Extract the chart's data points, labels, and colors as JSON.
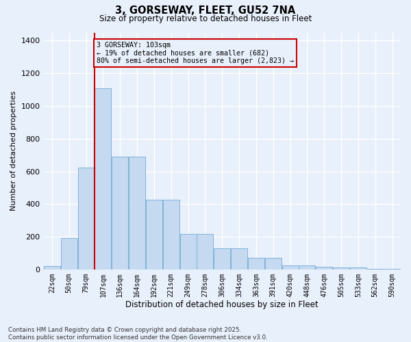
{
  "title_line1": "3, GORSEWAY, FLEET, GU52 7NA",
  "title_line2": "Size of property relative to detached houses in Fleet",
  "xlabel": "Distribution of detached houses by size in Fleet",
  "ylabel": "Number of detached properties",
  "categories": [
    "22sqm",
    "50sqm",
    "79sqm",
    "107sqm",
    "136sqm",
    "164sqm",
    "192sqm",
    "221sqm",
    "249sqm",
    "278sqm",
    "306sqm",
    "334sqm",
    "363sqm",
    "391sqm",
    "420sqm",
    "448sqm",
    "476sqm",
    "505sqm",
    "533sqm",
    "562sqm",
    "590sqm"
  ],
  "values": [
    20,
    190,
    625,
    1110,
    690,
    690,
    425,
    425,
    215,
    215,
    130,
    130,
    70,
    70,
    25,
    25,
    18,
    10,
    10,
    4,
    4
  ],
  "bar_color": "#c5d9f0",
  "bar_edge_color": "#7fb3d9",
  "vline_color": "#cc0000",
  "vline_bar_index": 3,
  "annotation_text": "3 GORSEWAY: 103sqm\n← 19% of detached houses are smaller (682)\n80% of semi-detached houses are larger (2,823) →",
  "annotation_box_edgecolor": "#cc0000",
  "ylim": [
    0,
    1450
  ],
  "yticks": [
    0,
    200,
    400,
    600,
    800,
    1000,
    1200,
    1400
  ],
  "bg_color": "#e8f0fb",
  "grid_color": "#ffffff",
  "footer": "Contains HM Land Registry data © Crown copyright and database right 2025.\nContains public sector information licensed under the Open Government Licence v3.0."
}
